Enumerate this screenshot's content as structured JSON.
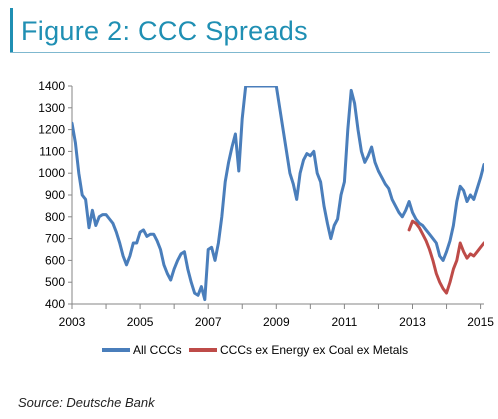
{
  "header": {
    "title": "Figure 2: CCC Spreads"
  },
  "source": "Source: Deutsche Bank",
  "chart_data": {
    "type": "line",
    "title": "Figure 2: CCC Spreads",
    "xlabel": "",
    "ylabel": "",
    "xlim": [
      2003,
      2015.1
    ],
    "ylim": [
      400,
      1400
    ],
    "y_ticks": [
      "400",
      "500",
      "600",
      "700",
      "800",
      "900",
      "1000",
      "1100",
      "1200",
      "1300",
      "1400"
    ],
    "x_ticks": [
      "2003",
      "2005",
      "2007",
      "2009",
      "2011",
      "2013",
      "2015"
    ],
    "grid": false,
    "legend": {
      "position": "bottom",
      "entries": [
        "All CCCs",
        "CCCs ex Energy ex Coal ex Metals"
      ]
    },
    "series": [
      {
        "name": "All CCCs",
        "color": "#4a7ebb",
        "points": [
          [
            2003.0,
            1230
          ],
          [
            2003.1,
            1140
          ],
          [
            2003.2,
            1000
          ],
          [
            2003.3,
            900
          ],
          [
            2003.4,
            880
          ],
          [
            2003.5,
            750
          ],
          [
            2003.6,
            830
          ],
          [
            2003.7,
            760
          ],
          [
            2003.8,
            800
          ],
          [
            2003.9,
            810
          ],
          [
            2004.0,
            810
          ],
          [
            2004.1,
            790
          ],
          [
            2004.2,
            770
          ],
          [
            2004.3,
            730
          ],
          [
            2004.4,
            680
          ],
          [
            2004.5,
            620
          ],
          [
            2004.6,
            580
          ],
          [
            2004.7,
            620
          ],
          [
            2004.8,
            680
          ],
          [
            2004.9,
            680
          ],
          [
            2005.0,
            730
          ],
          [
            2005.1,
            740
          ],
          [
            2005.2,
            710
          ],
          [
            2005.3,
            720
          ],
          [
            2005.4,
            720
          ],
          [
            2005.5,
            690
          ],
          [
            2005.6,
            650
          ],
          [
            2005.7,
            580
          ],
          [
            2005.8,
            540
          ],
          [
            2005.9,
            510
          ],
          [
            2006.0,
            560
          ],
          [
            2006.1,
            600
          ],
          [
            2006.2,
            630
          ],
          [
            2006.3,
            640
          ],
          [
            2006.4,
            560
          ],
          [
            2006.5,
            500
          ],
          [
            2006.6,
            450
          ],
          [
            2006.7,
            440
          ],
          [
            2006.8,
            480
          ],
          [
            2006.9,
            420
          ],
          [
            2007.0,
            650
          ],
          [
            2007.1,
            660
          ],
          [
            2007.2,
            600
          ],
          [
            2007.3,
            680
          ],
          [
            2007.4,
            800
          ],
          [
            2007.5,
            960
          ],
          [
            2007.6,
            1050
          ],
          [
            2007.7,
            1120
          ],
          [
            2007.8,
            1180
          ],
          [
            2007.9,
            1010
          ],
          [
            2008.0,
            1250
          ],
          [
            2008.1,
            1400
          ],
          [
            2008.2,
            1400
          ],
          [
            2008.3,
            1400
          ],
          [
            2008.4,
            1400
          ],
          [
            2008.5,
            1400
          ],
          [
            2008.6,
            1400
          ],
          [
            2008.7,
            1400
          ],
          [
            2008.8,
            1400
          ],
          [
            2008.9,
            1400
          ],
          [
            2009.0,
            1400
          ],
          [
            2009.1,
            1300
          ],
          [
            2009.2,
            1200
          ],
          [
            2009.3,
            1100
          ],
          [
            2009.4,
            1000
          ],
          [
            2009.5,
            950
          ],
          [
            2009.6,
            880
          ],
          [
            2009.7,
            1000
          ],
          [
            2009.8,
            1060
          ],
          [
            2009.9,
            1090
          ],
          [
            2010.0,
            1080
          ],
          [
            2010.1,
            1100
          ],
          [
            2010.2,
            1000
          ],
          [
            2010.3,
            960
          ],
          [
            2010.4,
            850
          ],
          [
            2010.5,
            770
          ],
          [
            2010.6,
            700
          ],
          [
            2010.7,
            760
          ],
          [
            2010.8,
            790
          ],
          [
            2010.9,
            900
          ],
          [
            2011.0,
            960
          ],
          [
            2011.1,
            1200
          ],
          [
            2011.2,
            1380
          ],
          [
            2011.3,
            1320
          ],
          [
            2011.4,
            1200
          ],
          [
            2011.5,
            1100
          ],
          [
            2011.6,
            1050
          ],
          [
            2011.7,
            1080
          ],
          [
            2011.8,
            1120
          ],
          [
            2011.9,
            1050
          ],
          [
            2012.0,
            1010
          ],
          [
            2012.1,
            980
          ],
          [
            2012.2,
            950
          ],
          [
            2012.3,
            930
          ],
          [
            2012.4,
            880
          ],
          [
            2012.5,
            850
          ],
          [
            2012.6,
            820
          ],
          [
            2012.7,
            800
          ],
          [
            2012.8,
            830
          ],
          [
            2012.9,
            870
          ],
          [
            2013.0,
            820
          ],
          [
            2013.1,
            790
          ],
          [
            2013.2,
            770
          ],
          [
            2013.3,
            760
          ],
          [
            2013.4,
            740
          ],
          [
            2013.5,
            720
          ],
          [
            2013.6,
            700
          ],
          [
            2013.7,
            680
          ],
          [
            2013.8,
            620
          ],
          [
            2013.9,
            600
          ],
          [
            2014.0,
            640
          ],
          [
            2014.1,
            690
          ],
          [
            2014.2,
            760
          ],
          [
            2014.3,
            870
          ],
          [
            2014.4,
            940
          ],
          [
            2014.5,
            920
          ],
          [
            2014.6,
            870
          ],
          [
            2014.7,
            900
          ],
          [
            2014.8,
            880
          ],
          [
            2014.9,
            930
          ],
          [
            2015.0,
            980
          ],
          [
            2015.1,
            1040
          ]
        ]
      },
      {
        "name": "CCCs ex Energy ex Coal ex Metals",
        "color": "#be4b48",
        "points": [
          [
            2012.9,
            740
          ],
          [
            2013.0,
            780
          ],
          [
            2013.1,
            770
          ],
          [
            2013.2,
            750
          ],
          [
            2013.3,
            720
          ],
          [
            2013.4,
            690
          ],
          [
            2013.5,
            650
          ],
          [
            2013.6,
            600
          ],
          [
            2013.7,
            540
          ],
          [
            2013.8,
            500
          ],
          [
            2013.9,
            470
          ],
          [
            2014.0,
            450
          ],
          [
            2014.1,
            500
          ],
          [
            2014.2,
            560
          ],
          [
            2014.3,
            600
          ],
          [
            2014.4,
            680
          ],
          [
            2014.5,
            640
          ],
          [
            2014.6,
            610
          ],
          [
            2014.7,
            630
          ],
          [
            2014.8,
            620
          ],
          [
            2014.9,
            640
          ],
          [
            2015.0,
            660
          ],
          [
            2015.1,
            680
          ]
        ]
      }
    ]
  }
}
